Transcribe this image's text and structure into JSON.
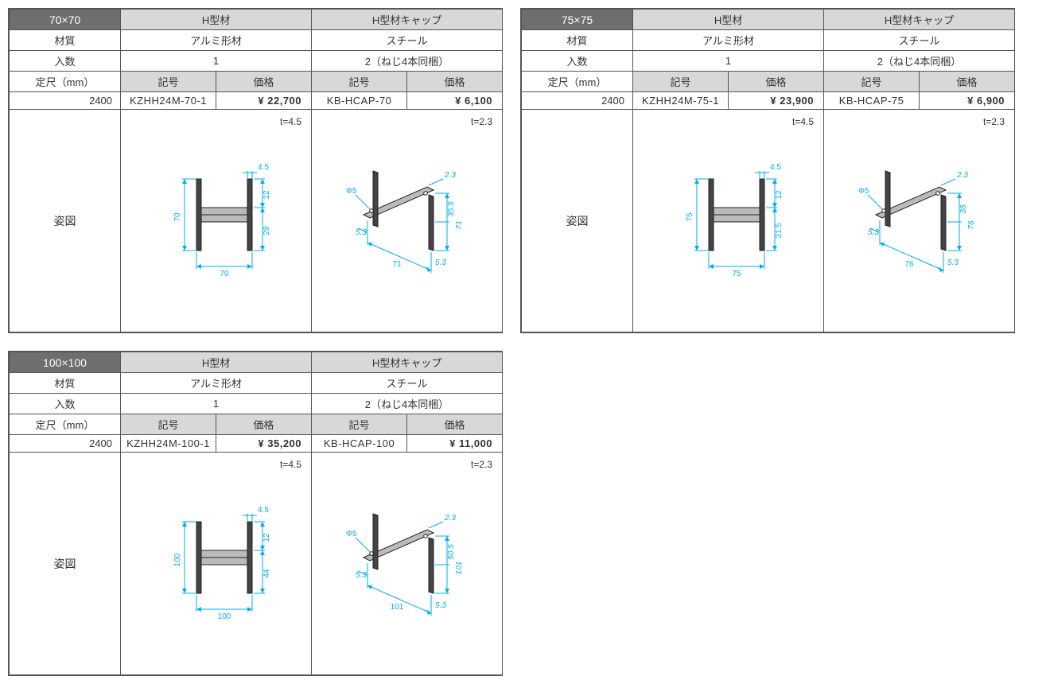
{
  "headers": {
    "h_shape": "H型材",
    "h_cap": "H型材キャップ",
    "material": "材質",
    "aluminum": "アルミ形材",
    "steel": "スチール",
    "qty": "入数",
    "qty_h": "1",
    "qty_cap": "2（ねじ4本同梱）",
    "length": "定尺（mm）",
    "symbol": "記号",
    "price": "価格",
    "diagram": "姿図"
  },
  "dim_color": "#00aeef",
  "panels": [
    {
      "size": "70×70",
      "length": "2400",
      "h_code": "KZHH24M-70-1",
      "h_price": "¥ 22,700",
      "h_tnote": "t=4.5",
      "cap_code": "KB-HCAP-70",
      "cap_price": "¥  6,100",
      "cap_tnote": "t=2.3",
      "h_dims": {
        "w": "70",
        "h": "70",
        "flange_t": "4.5",
        "web_h_top": "12",
        "web_h_mid": "29"
      },
      "cap_dims": {
        "phi": "Φ5",
        "a": "5.3",
        "b": "71",
        "c": "35.5",
        "d": "71",
        "e": "5.3",
        "t": "2.3"
      }
    },
    {
      "size": "75×75",
      "length": "2400",
      "h_code": "KZHH24M-75-1",
      "h_price": "¥ 23,900",
      "h_tnote": "t=4.5",
      "cap_code": "KB-HCAP-75",
      "cap_price": "¥  6,900",
      "cap_tnote": "t=2.3",
      "h_dims": {
        "w": "75",
        "h": "75",
        "flange_t": "4.5",
        "web_h_top": "12",
        "web_h_mid": "31.5"
      },
      "cap_dims": {
        "phi": "Φ5",
        "a": "5.3",
        "b": "76",
        "c": "38",
        "d": "76",
        "e": "5.3",
        "t": "2.3"
      }
    },
    {
      "size": "100×100",
      "length": "2400",
      "h_code": "KZHH24M-100-1",
      "h_price": "¥ 35,200",
      "h_tnote": "t=4.5",
      "cap_code": "KB-HCAP-100",
      "cap_price": "¥ 11,000",
      "cap_tnote": "t=2.3",
      "h_dims": {
        "w": "100",
        "h": "100",
        "flange_t": "4.5",
        "web_h_top": "12",
        "web_h_mid": "44"
      },
      "cap_dims": {
        "phi": "Φ5",
        "a": "5.3",
        "b": "101",
        "c": "50.5",
        "d": "101",
        "e": "5.3",
        "t": "2.3"
      }
    }
  ]
}
